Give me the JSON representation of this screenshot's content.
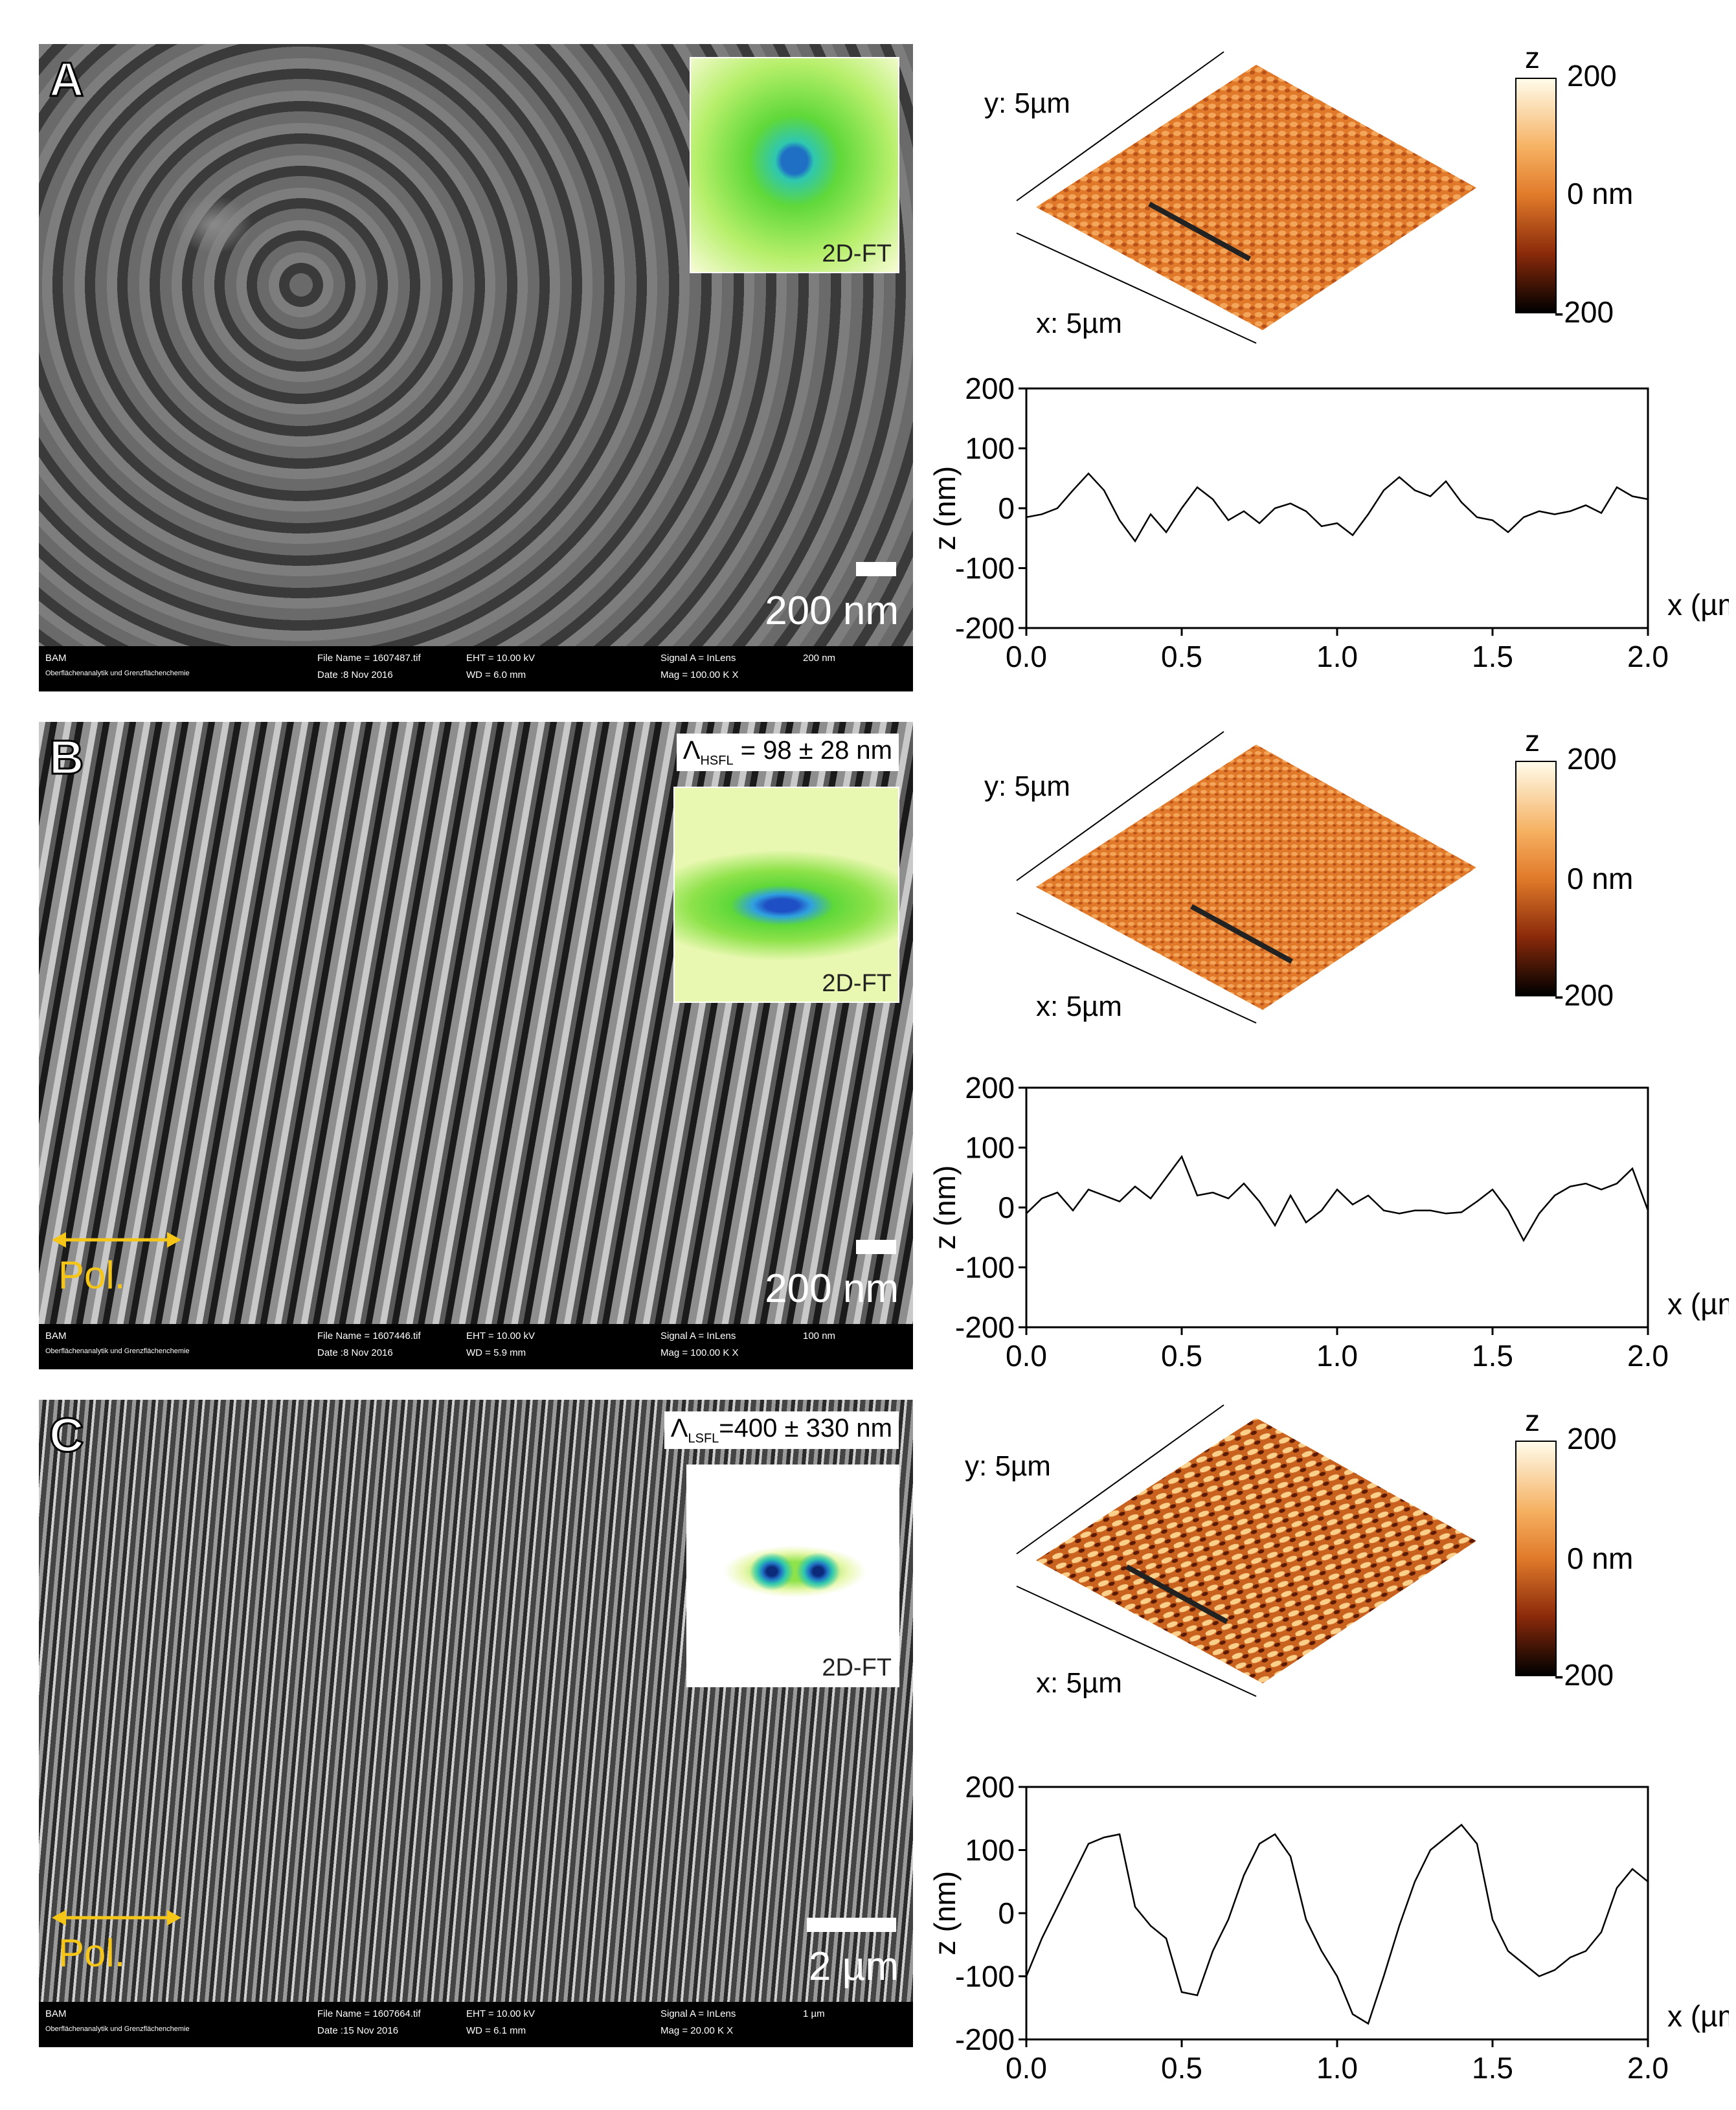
{
  "panels": [
    {
      "letter": "A",
      "sem": {
        "scale_text": "200 nm",
        "inset_label": "2D-FT",
        "lambda": null,
        "footer": {
          "org": "BAM",
          "dept": "Oberflächenanalytik und Grenzflächenchemie",
          "file": "File Name = 1607487.tif",
          "date": "Date :8 Nov 2016",
          "eht": "EHT = 10.00 kV",
          "wd": "WD = 6.0 mm",
          "signal": "Signal A = InLens",
          "mag": "Mag = 100.00 K X",
          "bar": "200 nm"
        }
      },
      "afm": {
        "y_label": "y: 5µm",
        "x_label": "x: 5µm",
        "cbar_top": "200",
        "cbar_mid": "0 nm",
        "cbar_bot": "-200",
        "cbar_title": "z"
      },
      "chart_data": {
        "type": "line",
        "xlabel": "x (µm)",
        "ylabel": "z (nm)",
        "xlim": [
          0,
          2.0
        ],
        "ylim": [
          -200,
          200
        ],
        "xticks": [
          "0.0",
          "0.5",
          "1.0",
          "1.5",
          "2.0"
        ],
        "yticks": [
          "200",
          "100",
          "0",
          "-100",
          "-200"
        ],
        "x": [
          0.0,
          0.05,
          0.1,
          0.15,
          0.2,
          0.25,
          0.3,
          0.35,
          0.4,
          0.45,
          0.5,
          0.55,
          0.6,
          0.65,
          0.7,
          0.75,
          0.8,
          0.85,
          0.9,
          0.95,
          1.0,
          1.05,
          1.1,
          1.15,
          1.2,
          1.25,
          1.3,
          1.35,
          1.4,
          1.45,
          1.5,
          1.55,
          1.6,
          1.65,
          1.7,
          1.75,
          1.8,
          1.85,
          1.9,
          1.95,
          2.0
        ],
        "y": [
          -15,
          -10,
          0,
          30,
          58,
          30,
          -20,
          -55,
          -10,
          -40,
          0,
          35,
          15,
          -20,
          -5,
          -25,
          0,
          8,
          -5,
          -30,
          -25,
          -45,
          -10,
          30,
          52,
          30,
          20,
          45,
          10,
          -15,
          -20,
          -40,
          -15,
          -5,
          -10,
          -5,
          5,
          -8,
          35,
          20,
          15
        ]
      }
    },
    {
      "letter": "B",
      "sem": {
        "scale_text": "200 nm",
        "inset_label": "2D-FT",
        "lambda": {
          "prefix": "Λ",
          "sup": "┴",
          "sub": "HSFL",
          "value": " = 98 ± 28 nm"
        },
        "pol": "Pol.",
        "footer": {
          "org": "BAM",
          "dept": "Oberflächenanalytik und Grenzflächenchemie",
          "file": "File Name = 1607446.tif",
          "date": "Date :8 Nov 2016",
          "eht": "EHT = 10.00 kV",
          "wd": "WD = 5.9 mm",
          "signal": "Signal A = InLens",
          "mag": "Mag = 100.00 K X",
          "bar": "100 nm"
        }
      },
      "afm": {
        "y_label": "y: 5µm",
        "x_label": "x: 5µm",
        "cbar_top": "200",
        "cbar_mid": "0 nm",
        "cbar_bot": "-200",
        "cbar_title": "z"
      },
      "chart_data": {
        "type": "line",
        "xlabel": "x (µm)",
        "ylabel": "z (nm)",
        "xlim": [
          0,
          2.0
        ],
        "ylim": [
          -200,
          200
        ],
        "xticks": [
          "0.0",
          "0.5",
          "1.0",
          "1.5",
          "2.0"
        ],
        "yticks": [
          "200",
          "100",
          "0",
          "-100",
          "-200"
        ],
        "x": [
          0.0,
          0.05,
          0.1,
          0.15,
          0.2,
          0.25,
          0.3,
          0.35,
          0.4,
          0.45,
          0.5,
          0.55,
          0.6,
          0.65,
          0.7,
          0.75,
          0.8,
          0.85,
          0.9,
          0.95,
          1.0,
          1.05,
          1.1,
          1.15,
          1.2,
          1.25,
          1.3,
          1.35,
          1.4,
          1.45,
          1.5,
          1.55,
          1.6,
          1.65,
          1.7,
          1.75,
          1.8,
          1.85,
          1.9,
          1.95,
          2.0
        ],
        "y": [
          -10,
          15,
          25,
          -5,
          30,
          20,
          10,
          35,
          15,
          50,
          85,
          20,
          25,
          15,
          40,
          10,
          -30,
          20,
          -25,
          -5,
          30,
          5,
          20,
          -5,
          -10,
          -5,
          -5,
          -10,
          -8,
          10,
          30,
          -5,
          -55,
          -10,
          20,
          35,
          40,
          30,
          40,
          65,
          -5
        ]
      }
    },
    {
      "letter": "C",
      "sem": {
        "scale_text": "2 µm",
        "inset_label": "2D-FT",
        "lambda": {
          "prefix": "Λ",
          "sup": "┴",
          "sub": "LSFL",
          "value": "=400 ± 330 nm"
        },
        "pol": "Pol.",
        "footer": {
          "org": "BAM",
          "dept": "Oberflächenanalytik und Grenzflächenchemie",
          "file": "File Name = 1607664.tif",
          "date": "Date :15 Nov 2016",
          "eht": "EHT = 10.00 kV",
          "wd": "WD = 6.1 mm",
          "signal": "Signal A = InLens",
          "mag": "Mag = 20.00 K X",
          "bar": "1 µm"
        }
      },
      "afm": {
        "y_label": "y: 5µm",
        "x_label": "x: 5µm",
        "cbar_top": "200",
        "cbar_mid": "0 nm",
        "cbar_bot": "-200",
        "cbar_title": "z"
      },
      "chart_data": {
        "type": "line",
        "xlabel": "x (µm)",
        "ylabel": "z (nm)",
        "xlim": [
          0,
          2.0
        ],
        "ylim": [
          -200,
          200
        ],
        "xticks": [
          "0.0",
          "0.5",
          "1.0",
          "1.5",
          "2.0"
        ],
        "yticks": [
          "200",
          "100",
          "0",
          "-100",
          "-200"
        ],
        "x": [
          0.0,
          0.05,
          0.1,
          0.15,
          0.2,
          0.25,
          0.3,
          0.35,
          0.4,
          0.45,
          0.5,
          0.55,
          0.6,
          0.65,
          0.7,
          0.75,
          0.8,
          0.85,
          0.9,
          0.95,
          1.0,
          1.05,
          1.1,
          1.15,
          1.2,
          1.25,
          1.3,
          1.35,
          1.4,
          1.45,
          1.5,
          1.55,
          1.6,
          1.65,
          1.7,
          1.75,
          1.8,
          1.85,
          1.9,
          1.95,
          2.0
        ],
        "y": [
          -100,
          -40,
          10,
          60,
          110,
          120,
          125,
          10,
          -20,
          -40,
          -125,
          -130,
          -60,
          -10,
          60,
          110,
          125,
          90,
          -10,
          -60,
          -100,
          -160,
          -175,
          -100,
          -20,
          50,
          100,
          120,
          140,
          110,
          -10,
          -60,
          -80,
          -100,
          -90,
          -70,
          -60,
          -30,
          40,
          70,
          50
        ]
      }
    }
  ],
  "colors": {
    "afm_surface": "#e07a2a",
    "fft_green": "#5fd83a",
    "fft_blue": "#1f6fc4",
    "pol_yellow": "#f5c518"
  }
}
